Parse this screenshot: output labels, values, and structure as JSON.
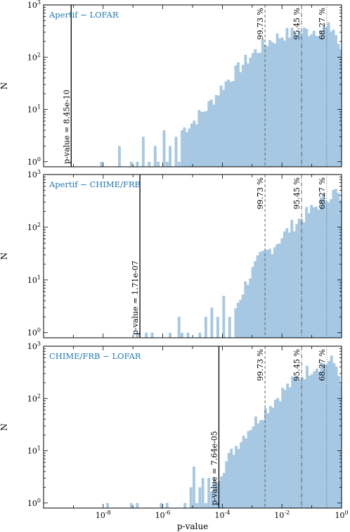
{
  "chart_data": [
    {
      "type": "histogram",
      "title": "Apertif − LOFAR",
      "xlabel": "",
      "ylabel": "N",
      "xscale": "log",
      "yscale": "log",
      "xlim": [
        1e-10,
        1
      ],
      "ylim": [
        0.8,
        1000
      ],
      "x_ticks": [],
      "y_ticks": [
        "10^0",
        "10^1",
        "10^2",
        "10^3"
      ],
      "color": "#a6c8e2",
      "confidence_lines": [
        {
          "label": "99.73 %",
          "x": 0.0027,
          "style": "dashed"
        },
        {
          "label": "95.45 %",
          "x": 0.0455,
          "style": "dashdot"
        },
        {
          "label": "68.27 %",
          "x": 0.3173,
          "style": "dotted"
        }
      ],
      "pvalue_line": {
        "label": "p-value = 8.45e-10",
        "x": 8.45e-10
      },
      "segments": [
        {
          "from": -8.4,
          "to": -5.4,
          "kind": "sparse",
          "counts": [
            [
              -8.1,
              1
            ],
            [
              -7.5,
              2
            ],
            [
              -7.1,
              1
            ],
            [
              -6.9,
              1
            ],
            [
              -6.7,
              3
            ],
            [
              -6.5,
              1
            ],
            [
              -6.3,
              2
            ],
            [
              -6.2,
              1
            ],
            [
              -6.0,
              4
            ],
            [
              -5.9,
              1
            ],
            [
              -5.8,
              2
            ],
            [
              -5.6,
              3
            ],
            [
              -5.5,
              1
            ]
          ]
        },
        {
          "from": -5.4,
          "to": 0,
          "kind": "rising",
          "points": [
            [
              -5.4,
              4
            ],
            [
              -5.0,
              6
            ],
            [
              -4.5,
              12
            ],
            [
              -4.0,
              30
            ],
            [
              -3.5,
              60
            ],
            [
              -3.0,
              120
            ],
            [
              -2.5,
              200
            ],
            [
              -2.0,
              270
            ],
            [
              -1.0,
              330
            ],
            [
              -0.3,
              350
            ],
            [
              -0.1,
              150
            ],
            [
              0,
              60
            ]
          ]
        }
      ]
    },
    {
      "type": "histogram",
      "title": "Apertif − CHIME/FRB",
      "xlabel": "",
      "ylabel": "N",
      "xscale": "log",
      "yscale": "log",
      "xlim": [
        1e-10,
        1
      ],
      "ylim": [
        0.8,
        1000
      ],
      "x_ticks": [],
      "y_ticks": [
        "10^0",
        "10^1",
        "10^2",
        "10^3"
      ],
      "color": "#a6c8e2",
      "confidence_lines": [
        {
          "label": "99.73 %",
          "x": 0.0027,
          "style": "dashed"
        },
        {
          "label": "95.45 %",
          "x": 0.0455,
          "style": "dashdot"
        },
        {
          "label": "68.27 %",
          "x": 0.3173,
          "style": "dotted"
        }
      ],
      "pvalue_line": {
        "label": "p-value = 1.71e-07",
        "x": 1.71e-07
      },
      "segments": [
        {
          "from": -7.0,
          "to": -3.6,
          "kind": "sparse",
          "counts": [
            [
              -6.9,
              1
            ],
            [
              -6.6,
              1
            ],
            [
              -6.4,
              1
            ],
            [
              -5.8,
              1
            ],
            [
              -5.5,
              2
            ],
            [
              -5.4,
              1
            ],
            [
              -5.2,
              1
            ],
            [
              -4.8,
              1
            ],
            [
              -4.6,
              2
            ],
            [
              -4.4,
              3
            ],
            [
              -4.2,
              2
            ],
            [
              -4.0,
              5
            ],
            [
              -3.8,
              2
            ]
          ]
        },
        {
          "from": -3.6,
          "to": 0,
          "kind": "rising",
          "points": [
            [
              -3.6,
              3
            ],
            [
              -3.2,
              10
            ],
            [
              -2.8,
              25
            ],
            [
              -2.4,
              40
            ],
            [
              -2.0,
              70
            ],
            [
              -1.6,
              120
            ],
            [
              -1.0,
              220
            ],
            [
              -0.5,
              400
            ],
            [
              -0.2,
              480
            ],
            [
              -0.08,
              300
            ],
            [
              0,
              40
            ]
          ]
        }
      ]
    },
    {
      "type": "histogram",
      "title": "CHIME/FRB − LOFAR",
      "xlabel": "p-value",
      "ylabel": "N",
      "xscale": "log",
      "yscale": "log",
      "xlim": [
        1e-10,
        1
      ],
      "ylim": [
        0.8,
        1000
      ],
      "x_ticks": [
        "10^-8",
        "10^-6",
        "10^-4",
        "10^-2",
        "10^0"
      ],
      "y_ticks": [
        "10^0",
        "10^1",
        "10^2",
        "10^3"
      ],
      "color": "#a6c8e2",
      "confidence_lines": [
        {
          "label": "99.73 %",
          "x": 0.0027,
          "style": "dashed"
        },
        {
          "label": "95.45 %",
          "x": 0.0455,
          "style": "dashdot"
        },
        {
          "label": "68.27 %",
          "x": 0.3173,
          "style": "dotted"
        }
      ],
      "pvalue_line": {
        "label": "p-value = 7.64e-05",
        "x": 7.64e-05
      },
      "segments": [
        {
          "from": -8.0,
          "to": -4.4,
          "kind": "sparse",
          "counts": [
            [
              -7.9,
              1
            ],
            [
              -7.1,
              1
            ],
            [
              -6.9,
              1
            ],
            [
              -6.1,
              1
            ],
            [
              -5.9,
              1
            ],
            [
              -5.3,
              1
            ],
            [
              -5.1,
              2
            ],
            [
              -5.0,
              5
            ],
            [
              -4.9,
              1
            ],
            [
              -4.8,
              2
            ],
            [
              -4.7,
              3
            ],
            [
              -4.6,
              1
            ],
            [
              -4.5,
              3
            ]
          ]
        },
        {
          "from": -4.4,
          "to": 0,
          "kind": "rising",
          "points": [
            [
              -4.4,
              2
            ],
            [
              -4.0,
              5
            ],
            [
              -3.6,
              12
            ],
            [
              -3.2,
              25
            ],
            [
              -2.8,
              45
            ],
            [
              -2.4,
              80
            ],
            [
              -2.0,
              140
            ],
            [
              -1.5,
              250
            ],
            [
              -1.0,
              400
            ],
            [
              -0.4,
              520
            ],
            [
              -0.15,
              400
            ],
            [
              0,
              80
            ]
          ]
        }
      ]
    }
  ]
}
